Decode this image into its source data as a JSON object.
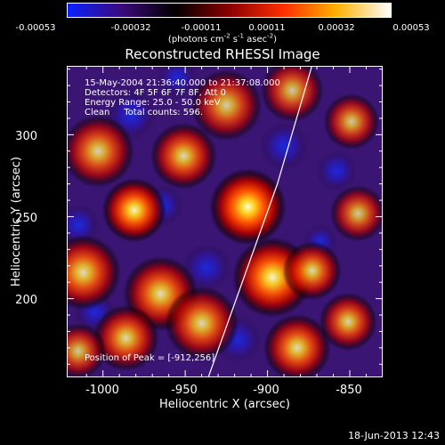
{
  "colorbar": {
    "ticks": [
      "-0.00053",
      "-0.00032",
      "-0.00011",
      "0.00011",
      "0.00032",
      "0.00053"
    ],
    "units_main": "(photons cm",
    "units_exp1": "-2",
    "units_mid": " s",
    "units_exp2": "-1",
    "units_mid2": " asec",
    "units_exp3": "-2",
    "units_end": ")",
    "colors": [
      "#0a22ff",
      "#3b0a7a",
      "#000000",
      "#8a0000",
      "#ff3000",
      "#ffb000",
      "#ffffff"
    ]
  },
  "annotations": {
    "line1": "15-May-2004 21:36:40.000 to 21:37:08.000",
    "line2": "Detectors: 4F 5F 6F 7F 8F, Att 0",
    "line3": "Energy Range: 25.0 - 50.0 keV",
    "line4": "Clean     Total counts: 596.",
    "peak": "Position of Peak = [-912,256]"
  },
  "timestamp": "18-Jun-2013 12:43",
  "chart_data": {
    "type": "heatmap",
    "title": "Reconstructed RHESSI Image",
    "xlabel": "Heliocentric X (arcsec)",
    "ylabel": "Heliocentric Y (arcsec)",
    "xlim": [
      -1022,
      -830
    ],
    "ylim": [
      152,
      342
    ],
    "xticks": [
      -1000,
      -950,
      -900,
      -850
    ],
    "xtick_labels": [
      "-1000",
      "-950",
      "-900",
      "-850"
    ],
    "yticks": [
      200,
      250,
      300
    ],
    "ytick_labels": [
      "200",
      "250",
      "300"
    ],
    "value_range": [
      -0.00053,
      0.00053
    ],
    "peak": [
      -912,
      256
    ],
    "limb_line": [
      [
        -936,
        152
      ],
      [
        -894,
        270
      ],
      [
        -873,
        342
      ]
    ],
    "sources": [
      {
        "x": -912,
        "y": 256,
        "amp": 1.0,
        "s": 9
      },
      {
        "x": -981,
        "y": 254,
        "amp": 0.8,
        "s": 8
      },
      {
        "x": -951,
        "y": 287,
        "amp": 0.55,
        "s": 9
      },
      {
        "x": -897,
        "y": 213,
        "amp": 0.8,
        "s": 10
      },
      {
        "x": -873,
        "y": 217,
        "amp": 0.55,
        "s": 8
      },
      {
        "x": -1012,
        "y": 216,
        "amp": 0.6,
        "s": 10
      },
      {
        "x": -965,
        "y": 203,
        "amp": 0.6,
        "s": 10
      },
      {
        "x": -986,
        "y": 176,
        "amp": 0.55,
        "s": 9
      },
      {
        "x": -1003,
        "y": 290,
        "amp": 0.5,
        "s": 10
      },
      {
        "x": -925,
        "y": 318,
        "amp": 0.45,
        "s": 10
      },
      {
        "x": -885,
        "y": 327,
        "amp": 0.4,
        "s": 9
      },
      {
        "x": -849,
        "y": 308,
        "amp": 0.4,
        "s": 8
      },
      {
        "x": -940,
        "y": 185,
        "amp": 0.55,
        "s": 10
      },
      {
        "x": -882,
        "y": 170,
        "amp": 0.6,
        "s": 9
      },
      {
        "x": -851,
        "y": 186,
        "amp": 0.5,
        "s": 8
      },
      {
        "x": -845,
        "y": 252,
        "amp": 0.4,
        "s": 8
      },
      {
        "x": -1015,
        "y": 168,
        "amp": 0.4,
        "s": 8
      }
    ],
    "negatives": [
      {
        "x": -983,
        "y": 312,
        "amp": 0.5,
        "s": 7
      },
      {
        "x": -964,
        "y": 257,
        "amp": 0.45,
        "s": 6
      },
      {
        "x": -890,
        "y": 293,
        "amp": 0.45,
        "s": 7
      },
      {
        "x": -937,
        "y": 219,
        "amp": 0.4,
        "s": 7
      },
      {
        "x": -1015,
        "y": 245,
        "amp": 0.45,
        "s": 6
      },
      {
        "x": -858,
        "y": 278,
        "amp": 0.4,
        "s": 6
      },
      {
        "x": -918,
        "y": 175,
        "amp": 0.35,
        "s": 7
      },
      {
        "x": -955,
        "y": 335,
        "amp": 0.35,
        "s": 6
      },
      {
        "x": -868,
        "y": 235,
        "amp": 0.35,
        "s": 5
      },
      {
        "x": -1005,
        "y": 192,
        "amp": 0.35,
        "s": 6
      }
    ]
  }
}
